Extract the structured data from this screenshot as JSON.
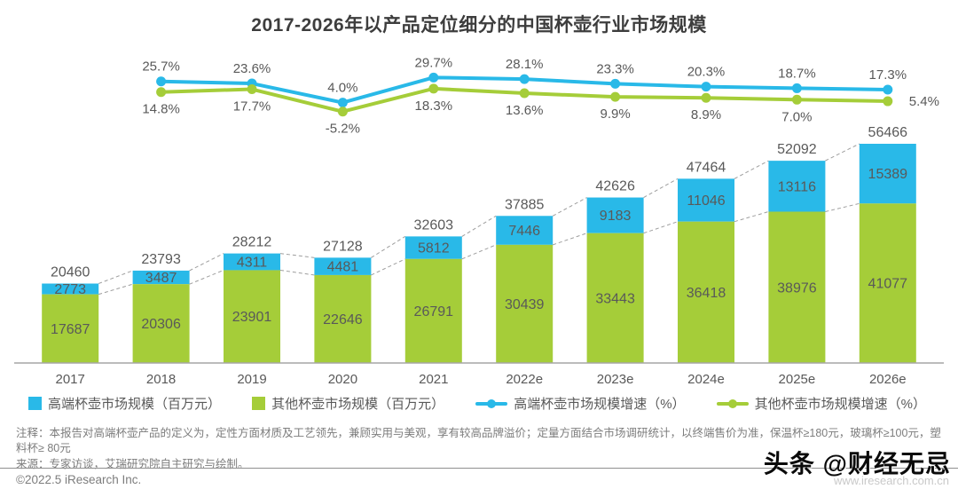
{
  "title": "2017-2026年以产品定位细分的中国杯壶行业市场规模",
  "colors": {
    "highend_blue": "#29b9e8",
    "other_green": "#a5cd39",
    "value_label": "#595959",
    "axis": "#a6a6a6",
    "connector": "#9e9e9e",
    "title_text": "#3d3d3d",
    "note_text": "#7d7d7d"
  },
  "chart_data": {
    "type": "combo",
    "subtype": "stacked-bar + line",
    "categories": [
      "2017",
      "2018",
      "2019",
      "2020",
      "2021",
      "2022e",
      "2023e",
      "2024e",
      "2025e",
      "2026e"
    ],
    "totals": [
      20460,
      23793,
      28212,
      27128,
      32603,
      37885,
      42626,
      47464,
      52092,
      56466
    ],
    "series": [
      {
        "name": "高端杯壶市场规模（百万元）",
        "type": "bar",
        "stack": "top",
        "color": "#29b9e8",
        "values": [
          2773,
          3487,
          4311,
          4481,
          5812,
          7446,
          9183,
          11046,
          13116,
          15389
        ]
      },
      {
        "name": "其他杯壶市场规模（百万元）",
        "type": "bar",
        "stack": "bottom",
        "color": "#a5cd39",
        "values": [
          17687,
          20306,
          23901,
          22646,
          26791,
          30439,
          33443,
          36418,
          38976,
          41077
        ]
      },
      {
        "name": "高端杯壶市场规模增速（%）",
        "type": "line",
        "color": "#29b9e8",
        "categories": [
          "2018",
          "2019",
          "2020",
          "2021",
          "2022e",
          "2023e",
          "2024e",
          "2025e",
          "2026e"
        ],
        "values": [
          25.7,
          23.6,
          4.0,
          29.7,
          28.1,
          23.3,
          20.3,
          18.7,
          17.3
        ]
      },
      {
        "name": "其他杯壶市场规模增速（%）",
        "type": "line",
        "color": "#a5cd39",
        "categories": [
          "2018",
          "2019",
          "2020",
          "2021",
          "2022e",
          "2023e",
          "2024e",
          "2025e",
          "2026e"
        ],
        "values": [
          14.8,
          17.7,
          -5.2,
          18.3,
          13.6,
          9.9,
          8.9,
          7.0,
          5.4
        ]
      }
    ],
    "xlabel": "",
    "ylabel": "",
    "grid": false,
    "legend_position": "bottom",
    "value_labels_shown": true,
    "dashed_connectors_between_bars": true
  },
  "notes": {
    "annotation": "注释：本报告对高端杯壶产品的定义为，定性方面材质及工艺领先，兼顾实用与美观，享有较高品牌溢价；定量方面结合市场调研统计，以终端售价为准，保温杯≥180元，玻璃杯≥100元，塑料杯≥ 80元",
    "source": "来源：专家访谈，艾瑞研究院自主研究与绘制。"
  },
  "footer": {
    "copyright": "©2022.5 iResearch Inc.",
    "watermark": "头条 @财经无忌",
    "watermark_url": "www.iresearch.com.cn"
  }
}
